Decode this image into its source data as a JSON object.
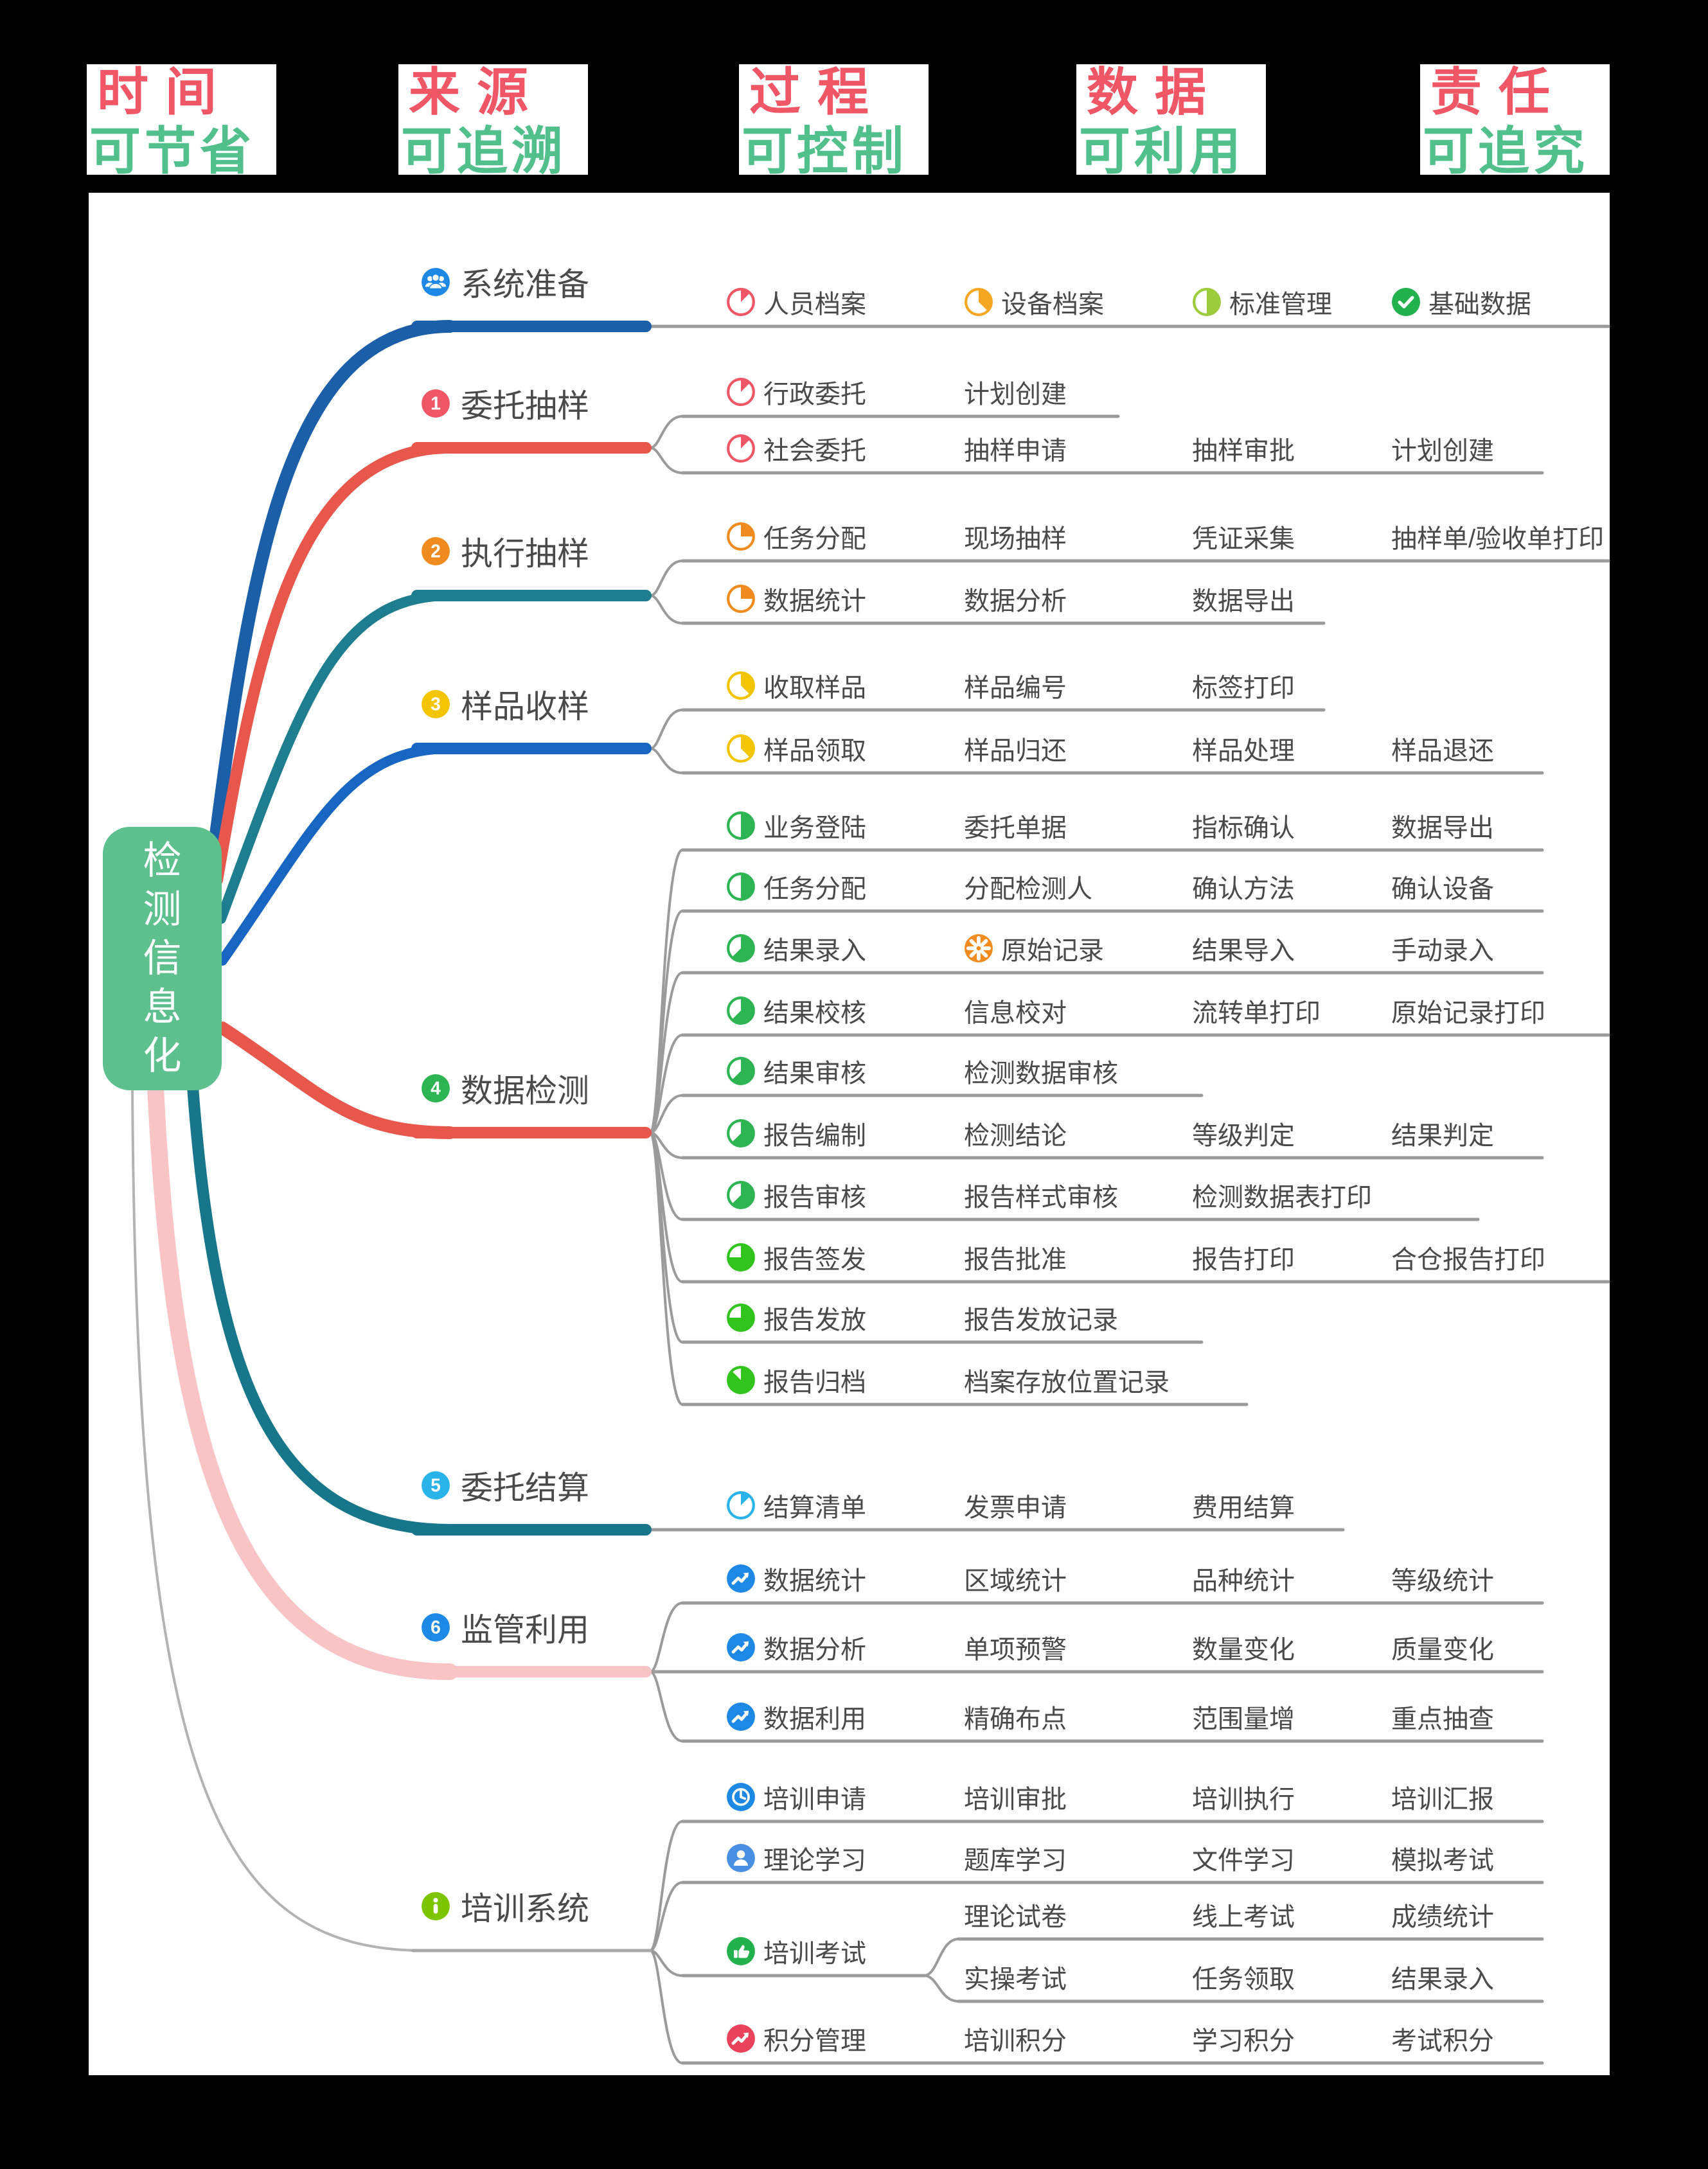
{
  "page": {
    "border_color": "#000000",
    "canvas_color": "#ffffff"
  },
  "header": {
    "top_color": "#ef5767",
    "bottom_color": "#52c08d",
    "labels": [
      {
        "top": "时间",
        "bottom": "可节省"
      },
      {
        "top": "来源",
        "bottom": "可追溯"
      },
      {
        "top": "过程",
        "bottom": "可控制"
      },
      {
        "top": "数据",
        "bottom": "可利用"
      },
      {
        "top": "责任",
        "bottom": "可追究"
      }
    ]
  },
  "root": {
    "label": "检测信息化",
    "color": "#5fc08f"
  },
  "line_color": "#9b9b9b",
  "branches": [
    {
      "label": "系统准备",
      "icon": "team-icon",
      "icon_color": "#1e88e5",
      "bar_color": "#1a5fa8",
      "curve_color": "#1a5fa8",
      "rows": [
        {
          "nodes": [
            {
              "label": "人员档案",
              "icon": "pie-1-8-icon",
              "icon_color": "#ef5767"
            },
            {
              "label": "设备档案",
              "icon": "pie-3-8-icon",
              "icon_color": "#f5a623"
            },
            {
              "label": "标准管理",
              "icon": "pie-1-2-icon",
              "icon_color": "#9ccb3b"
            },
            {
              "label": "基础数据",
              "icon": "check-icon",
              "icon_color": "#22b14c"
            }
          ]
        }
      ]
    },
    {
      "label": "委托抽样",
      "icon": "badge-1-icon",
      "icon_color": "#ef5767",
      "bar_color": "#e8574b",
      "curve_color": "#e8574b",
      "rows": [
        {
          "nodes": [
            {
              "label": "行政委托",
              "icon": "pie-1-8-icon",
              "icon_color": "#ef5767"
            },
            {
              "label": "计划创建"
            }
          ]
        },
        {
          "nodes": [
            {
              "label": "社会委托",
              "icon": "pie-1-8-icon",
              "icon_color": "#ef5767"
            },
            {
              "label": "抽样申请"
            },
            {
              "label": "抽样审批"
            },
            {
              "label": "计划创建"
            }
          ]
        }
      ]
    },
    {
      "label": "执行抽样",
      "icon": "badge-2-icon",
      "icon_color": "#f08c1f",
      "bar_color": "#1e7e8f",
      "curve_color": "#1e7e8f",
      "rows": [
        {
          "nodes": [
            {
              "label": "任务分配",
              "icon": "pie-1-4-icon",
              "icon_color": "#f08c1f"
            },
            {
              "label": "现场抽样"
            },
            {
              "label": "凭证采集"
            },
            {
              "label": "抽样单/验收单打印"
            }
          ]
        },
        {
          "nodes": [
            {
              "label": "数据统计",
              "icon": "pie-1-4-icon",
              "icon_color": "#f08c1f"
            },
            {
              "label": "数据分析"
            },
            {
              "label": "数据导出"
            }
          ]
        }
      ]
    },
    {
      "label": "样品收样",
      "icon": "badge-3-icon",
      "icon_color": "#f2c500",
      "bar_color": "#1766c2",
      "curve_color": "#1766c2",
      "rows": [
        {
          "nodes": [
            {
              "label": "收取样品",
              "icon": "pie-3-8-icon",
              "icon_color": "#f2c500"
            },
            {
              "label": "样品编号"
            },
            {
              "label": "标签打印"
            }
          ]
        },
        {
          "nodes": [
            {
              "label": "样品领取",
              "icon": "pie-3-8-icon",
              "icon_color": "#f2c500"
            },
            {
              "label": "样品归还"
            },
            {
              "label": "样品处理"
            },
            {
              "label": "样品退还"
            }
          ]
        }
      ]
    },
    {
      "label": "数据检测",
      "icon": "badge-4-icon",
      "icon_color": "#2eb553",
      "bar_color": "#e8574b",
      "curve_color": "#e8574b",
      "rows": [
        {
          "nodes": [
            {
              "label": "业务登陆",
              "icon": "pie-1-2-icon",
              "icon_color": "#2eb553"
            },
            {
              "label": "委托单据"
            },
            {
              "label": "指标确认"
            },
            {
              "label": "数据导出"
            }
          ]
        },
        {
          "nodes": [
            {
              "label": "任务分配",
              "icon": "pie-1-2-icon",
              "icon_color": "#2eb553"
            },
            {
              "label": "分配检测人"
            },
            {
              "label": "确认方法"
            },
            {
              "label": "确认设备"
            }
          ]
        },
        {
          "nodes": [
            {
              "label": "结果录入",
              "icon": "pie-5-8-icon",
              "icon_color": "#2eb553"
            },
            {
              "label": "原始记录",
              "icon": "gear-icon",
              "icon_color": "#f08c1f"
            },
            {
              "label": "结果导入"
            },
            {
              "label": "手动录入"
            }
          ]
        },
        {
          "nodes": [
            {
              "label": "结果校核",
              "icon": "pie-5-8-icon",
              "icon_color": "#2eb553"
            },
            {
              "label": "信息校对"
            },
            {
              "label": "流转单打印"
            },
            {
              "label": "原始记录打印"
            }
          ]
        },
        {
          "nodes": [
            {
              "label": "结果审核",
              "icon": "pie-5-8-icon",
              "icon_color": "#2eb553"
            },
            {
              "label": "检测数据审核"
            }
          ]
        },
        {
          "nodes": [
            {
              "label": "报告编制",
              "icon": "pie-5-8-icon",
              "icon_color": "#2eb553"
            },
            {
              "label": "检测结论"
            },
            {
              "label": "等级判定"
            },
            {
              "label": "结果判定"
            }
          ]
        },
        {
          "nodes": [
            {
              "label": "报告审核",
              "icon": "pie-5-8-icon",
              "icon_color": "#2eb553"
            },
            {
              "label": "报告样式审核"
            },
            {
              "label": "检测数据表打印"
            }
          ]
        },
        {
          "nodes": [
            {
              "label": "报告签发",
              "icon": "pie-3-4-icon",
              "icon_color": "#31c41c"
            },
            {
              "label": "报告批准"
            },
            {
              "label": "报告打印"
            },
            {
              "label": "合仓报告打印"
            }
          ]
        },
        {
          "nodes": [
            {
              "label": "报告发放",
              "icon": "pie-3-4-icon",
              "icon_color": "#31c41c"
            },
            {
              "label": "报告发放记录"
            }
          ]
        },
        {
          "nodes": [
            {
              "label": "报告归档",
              "icon": "pie-7-8-icon",
              "icon_color": "#31c41c"
            },
            {
              "label": "档案存放位置记录"
            }
          ]
        }
      ]
    },
    {
      "label": "委托结算",
      "icon": "badge-5-icon",
      "icon_color": "#29b3e8",
      "bar_color": "#17768a",
      "curve_color": "#17768a",
      "rows": [
        {
          "nodes": [
            {
              "label": "结算清单",
              "icon": "pie-1-8-icon",
              "icon_color": "#29b3e8"
            },
            {
              "label": "发票申请"
            },
            {
              "label": "费用结算"
            }
          ]
        }
      ]
    },
    {
      "label": "监管利用",
      "icon": "badge-6-icon",
      "icon_color": "#1e88e5",
      "bar_color": "#f9c4c6",
      "curve_color": "#f9c4c6",
      "rows": [
        {
          "nodes": [
            {
              "label": "数据统计",
              "icon": "trend-up-icon",
              "icon_color": "#1e88e5"
            },
            {
              "label": "区域统计"
            },
            {
              "label": "品种统计"
            },
            {
              "label": "等级统计"
            }
          ]
        },
        {
          "nodes": [
            {
              "label": "数据分析",
              "icon": "trend-up-icon",
              "icon_color": "#1e88e5"
            },
            {
              "label": "单项预警"
            },
            {
              "label": "数量变化"
            },
            {
              "label": "质量变化"
            }
          ]
        },
        {
          "nodes": [
            {
              "label": "数据利用",
              "icon": "trend-up-icon",
              "icon_color": "#1e88e5"
            },
            {
              "label": "精确布点"
            },
            {
              "label": "范围量增"
            },
            {
              "label": "重点抽查"
            }
          ]
        }
      ]
    },
    {
      "label": "培训系统",
      "icon": "info-icon",
      "icon_color": "#7cc500",
      "bar_color": "#a9a9a9",
      "curve_color": "#b3b3b3",
      "rows": [
        {
          "nodes": [
            {
              "label": "培训申请",
              "icon": "clock-icon",
              "icon_color": "#1e88e5"
            },
            {
              "label": "培训审批"
            },
            {
              "label": "培训执行"
            },
            {
              "label": "培训汇报"
            }
          ]
        },
        {
          "nodes": [
            {
              "label": "理论学习",
              "icon": "user-icon",
              "icon_color": "#4a90e2"
            },
            {
              "label": "题库学习"
            },
            {
              "label": "文件学习"
            },
            {
              "label": "模拟考试"
            }
          ]
        },
        {
          "nodes": [
            {
              "label": "培训考试",
              "icon": "thumbs-up-icon",
              "icon_color": "#22b14c"
            }
          ]
        },
        {
          "nodes": [
            {
              "label": "理论试卷"
            },
            {
              "label": "线上考试"
            },
            {
              "label": "成绩统计"
            }
          ]
        },
        {
          "nodes": [
            {
              "label": "实操考试"
            },
            {
              "label": "任务领取"
            },
            {
              "label": "结果录入"
            }
          ]
        },
        {
          "nodes": [
            {
              "label": "积分管理",
              "icon": "trend-up-icon",
              "icon_color": "#e8435a"
            },
            {
              "label": "培训积分"
            },
            {
              "label": "学习积分"
            },
            {
              "label": "考试积分"
            }
          ]
        }
      ]
    }
  ]
}
